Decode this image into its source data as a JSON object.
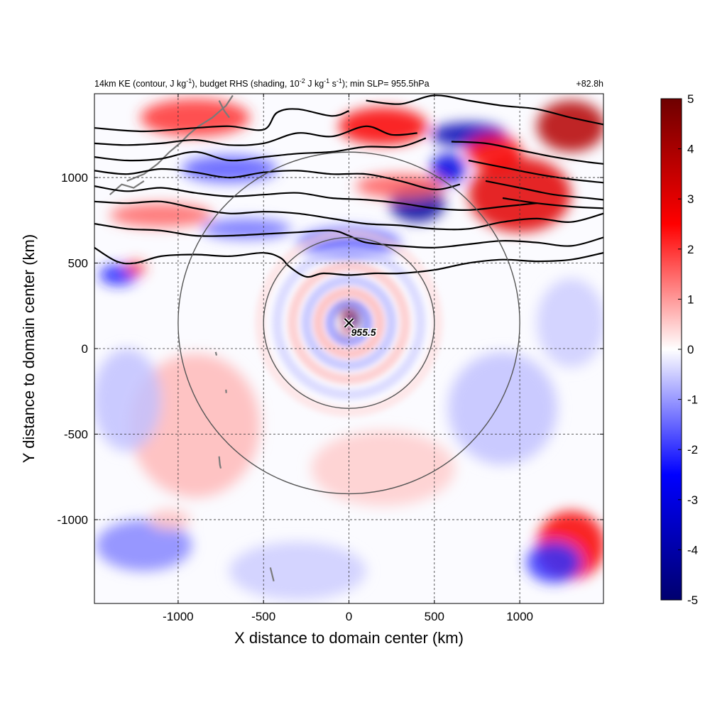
{
  "chart_data": {
    "type": "heatmap",
    "title_parts": {
      "p1": "14km KE (contour, J kg",
      "p1_sup": "-1",
      "p2": "), budget RHS (shading, 10",
      "p2_sup": "-2",
      "p3": " J kg",
      "p3_sup": "-1",
      "p4": " s",
      "p4_sup": "-1",
      "p5": "); min SLP= 955.5hPa"
    },
    "time_label": "+82.8h",
    "xlabel": "X distance to domain center (km)",
    "ylabel": "Y distance to domain center (km)",
    "xlim": [
      -1490,
      1490
    ],
    "ylim": [
      -1490,
      1490
    ],
    "xticks": [
      -1000,
      -500,
      0,
      500,
      1000
    ],
    "yticks": [
      -1000,
      -500,
      0,
      500,
      1000
    ],
    "xtick_labels": [
      "-1000",
      "-500",
      "0",
      "500",
      "1000"
    ],
    "ytick_labels": [
      "-1000",
      "-500",
      "0",
      "500",
      "1000"
    ],
    "grid": true,
    "colorbar": {
      "min": -5,
      "max": 5,
      "ticks": [
        5,
        4,
        3,
        2,
        1,
        0,
        -1,
        -2,
        -3,
        -4,
        -5
      ],
      "tick_labels": [
        "5",
        "4",
        "3",
        "2",
        "1",
        "0",
        "-1",
        "-2",
        "-3",
        "-4",
        "-5"
      ],
      "colors": [
        "#00006e",
        "#0000ff",
        "#ffffff",
        "#ff0000",
        "#6e0000"
      ],
      "placement": "right"
    },
    "storm_center": {
      "x": 0,
      "y": 150,
      "label": "955.5",
      "min_slp_hPa": 955.5
    },
    "range_circles_km": [
      500,
      1000
    ],
    "ke_contours": [
      {
        "points": [
          [
            -1490,
            1290
          ],
          [
            -1200,
            1270
          ],
          [
            -900,
            1290
          ],
          [
            -700,
            1300
          ],
          [
            -500,
            1280
          ],
          [
            -420,
            1380
          ],
          [
            -300,
            1400
          ],
          [
            -100,
            1360
          ],
          [
            0,
            1390
          ]
        ]
      },
      {
        "points": [
          [
            -1490,
            1200
          ],
          [
            -1300,
            1190
          ],
          [
            -1100,
            1200
          ],
          [
            -900,
            1220
          ],
          [
            -700,
            1190
          ],
          [
            -500,
            1200
          ],
          [
            -300,
            1260
          ],
          [
            -100,
            1240
          ],
          [
            100,
            1300
          ],
          [
            250,
            1250
          ],
          [
            400,
            1260
          ]
        ]
      },
      {
        "points": [
          [
            -1490,
            1120
          ],
          [
            -1300,
            1100
          ],
          [
            -1100,
            1110
          ],
          [
            -900,
            1150
          ],
          [
            -700,
            1100
          ],
          [
            -500,
            1120
          ],
          [
            -300,
            1140
          ],
          [
            -100,
            1150
          ],
          [
            100,
            1180
          ],
          [
            300,
            1180
          ],
          [
            450,
            1230
          ]
        ]
      },
      {
        "points": [
          [
            -1490,
            1040
          ],
          [
            -1300,
            1020
          ],
          [
            -1100,
            1050
          ],
          [
            -900,
            1030
          ],
          [
            -700,
            1000
          ],
          [
            -500,
            1030
          ],
          [
            -300,
            1040
          ],
          [
            -100,
            1020
          ],
          [
            100,
            1020
          ],
          [
            300,
            980
          ],
          [
            500,
            930
          ],
          [
            650,
            960
          ]
        ]
      },
      {
        "points": [
          [
            -1490,
            950
          ],
          [
            -1300,
            920
          ],
          [
            -1100,
            940
          ],
          [
            -900,
            910
          ],
          [
            -700,
            890
          ],
          [
            -500,
            900
          ],
          [
            -300,
            910
          ],
          [
            -100,
            880
          ],
          [
            100,
            870
          ],
          [
            300,
            850
          ],
          [
            500,
            820
          ],
          [
            700,
            810
          ],
          [
            900,
            830
          ],
          [
            1100,
            850
          ]
        ]
      },
      {
        "points": [
          [
            -1490,
            860
          ],
          [
            -1300,
            850
          ],
          [
            -1100,
            860
          ],
          [
            -900,
            820
          ],
          [
            -700,
            790
          ],
          [
            -500,
            800
          ],
          [
            -300,
            790
          ],
          [
            -100,
            760
          ],
          [
            100,
            730
          ],
          [
            300,
            720
          ],
          [
            500,
            700
          ],
          [
            700,
            700
          ],
          [
            900,
            740
          ],
          [
            1100,
            760
          ],
          [
            1300,
            740
          ],
          [
            1490,
            790
          ]
        ]
      },
      {
        "points": [
          [
            -1490,
            730
          ],
          [
            -1300,
            700
          ],
          [
            -1100,
            690
          ],
          [
            -900,
            660
          ],
          [
            -700,
            660
          ],
          [
            -500,
            670
          ],
          [
            -300,
            680
          ],
          [
            -100,
            690
          ],
          [
            0,
            660
          ],
          [
            100,
            620
          ],
          [
            300,
            600
          ],
          [
            500,
            590
          ],
          [
            700,
            610
          ],
          [
            900,
            630
          ],
          [
            1100,
            620
          ],
          [
            1300,
            600
          ],
          [
            1490,
            650
          ]
        ]
      },
      {
        "points": [
          [
            -1490,
            590
          ],
          [
            -1360,
            510
          ],
          [
            -1250,
            500
          ],
          [
            -1100,
            540
          ],
          [
            -900,
            550
          ],
          [
            -700,
            540
          ],
          [
            -500,
            560
          ],
          [
            -400,
            530
          ],
          [
            -350,
            480
          ],
          [
            -250,
            420
          ],
          [
            -150,
            440
          ],
          [
            0,
            430
          ],
          [
            150,
            440
          ],
          [
            300,
            440
          ],
          [
            500,
            460
          ],
          [
            700,
            500
          ],
          [
            900,
            520
          ],
          [
            1100,
            510
          ],
          [
            1300,
            520
          ],
          [
            1490,
            560
          ]
        ]
      },
      {
        "points": [
          [
            100,
            1450
          ],
          [
            300,
            1430
          ],
          [
            500,
            1480
          ],
          [
            700,
            1450
          ],
          [
            900,
            1420
          ],
          [
            1100,
            1400
          ],
          [
            1300,
            1350
          ],
          [
            1490,
            1310
          ]
        ]
      },
      {
        "points": [
          [
            600,
            1210
          ],
          [
            800,
            1200
          ],
          [
            1000,
            1160
          ],
          [
            1200,
            1120
          ],
          [
            1400,
            1090
          ],
          [
            1490,
            1080
          ]
        ]
      },
      {
        "points": [
          [
            700,
            1100
          ],
          [
            900,
            1060
          ],
          [
            1100,
            1020
          ],
          [
            1300,
            990
          ],
          [
            1490,
            970
          ]
        ]
      },
      {
        "points": [
          [
            800,
            980
          ],
          [
            1000,
            940
          ],
          [
            1200,
            900
          ],
          [
            1400,
            880
          ],
          [
            1490,
            870
          ]
        ]
      },
      {
        "points": [
          [
            900,
            880
          ],
          [
            1100,
            850
          ],
          [
            1300,
            830
          ],
          [
            1490,
            820
          ]
        ]
      }
    ],
    "coastline_segments": [
      {
        "points": [
          [
            -1300,
            980
          ],
          [
            -1200,
            1020
          ],
          [
            -1120,
            1080
          ],
          [
            -1050,
            1150
          ],
          [
            -990,
            1200
          ],
          [
            -940,
            1250
          ],
          [
            -880,
            1300
          ],
          [
            -800,
            1350
          ],
          [
            -720,
            1420
          ],
          [
            -680,
            1480
          ]
        ]
      },
      {
        "points": [
          [
            -1400,
            900
          ],
          [
            -1330,
            960
          ],
          [
            -1260,
            940
          ],
          [
            -1200,
            980
          ]
        ]
      },
      {
        "points": [
          [
            -760,
            1450
          ],
          [
            -730,
            1390
          ],
          [
            -700,
            1350
          ]
        ]
      },
      {
        "points": [
          [
            -760,
            -630
          ],
          [
            -755,
            -680
          ],
          [
            -750,
            -700
          ]
        ]
      },
      {
        "points": [
          [
            -460,
            -1280
          ],
          [
            -450,
            -1320
          ],
          [
            -440,
            -1360
          ]
        ]
      },
      {
        "points": [
          [
            -780,
            -20
          ],
          [
            -775,
            -40
          ]
        ]
      },
      {
        "points": [
          [
            -720,
            -240
          ],
          [
            -718,
            -260
          ]
        ]
      }
    ],
    "shading_blobs": [
      {
        "x": 0,
        "y": 210,
        "rx": 55,
        "ry": 40,
        "v": 4.5
      },
      {
        "x": 30,
        "y": 165,
        "rx": 40,
        "ry": 45,
        "v": -4.8
      },
      {
        "x": -15,
        "y": 100,
        "rx": 25,
        "ry": 35,
        "v": 3.8
      },
      {
        "x": 400,
        "y": 850,
        "rx": 160,
        "ry": 110,
        "v": -4.2
      },
      {
        "x": 700,
        "y": 1250,
        "rx": 220,
        "ry": 70,
        "v": -3.8
      },
      {
        "x": 580,
        "y": 1050,
        "rx": 100,
        "ry": 90,
        "v": -3.0
      },
      {
        "x": 1000,
        "y": 900,
        "rx": 300,
        "ry": 220,
        "v": 3.0
      },
      {
        "x": 1300,
        "y": 1300,
        "rx": 200,
        "ry": 150,
        "v": 3.8
      },
      {
        "x": 850,
        "y": 1150,
        "rx": 160,
        "ry": 100,
        "v": 2.6
      },
      {
        "x": 200,
        "y": 1300,
        "rx": 260,
        "ry": 110,
        "v": 2.6
      },
      {
        "x": -900,
        "y": 1350,
        "rx": 320,
        "ry": 110,
        "v": 2.0
      },
      {
        "x": -700,
        "y": 1050,
        "rx": 280,
        "ry": 80,
        "v": -1.6
      },
      {
        "x": -1100,
        "y": 780,
        "rx": 300,
        "ry": 70,
        "v": 1.5
      },
      {
        "x": -600,
        "y": 700,
        "rx": 260,
        "ry": 60,
        "v": -1.4
      },
      {
        "x": -1350,
        "y": 430,
        "rx": 110,
        "ry": 60,
        "v": -2.2
      },
      {
        "x": -1250,
        "y": 470,
        "rx": 60,
        "ry": 40,
        "v": 2.0
      },
      {
        "x": 0,
        "y": 620,
        "rx": 300,
        "ry": 90,
        "v": -1.5
      },
      {
        "x": 300,
        "y": 950,
        "rx": 260,
        "ry": 70,
        "v": 1.6
      },
      {
        "x": 1300,
        "y": -1150,
        "rx": 200,
        "ry": 200,
        "v": 2.6
      },
      {
        "x": 1200,
        "y": -1250,
        "rx": 160,
        "ry": 120,
        "v": -2.0
      },
      {
        "x": -1200,
        "y": -1150,
        "rx": 280,
        "ry": 150,
        "v": -1.2
      },
      {
        "x": -900,
        "y": -450,
        "rx": 380,
        "ry": 420,
        "v": 0.7
      },
      {
        "x": 900,
        "y": -350,
        "rx": 320,
        "ry": 330,
        "v": -0.6
      },
      {
        "x": 200,
        "y": -700,
        "rx": 420,
        "ry": 220,
        "v": 0.5
      },
      {
        "x": -1300,
        "y": -300,
        "rx": 200,
        "ry": 300,
        "v": -0.6
      },
      {
        "x": 1300,
        "y": 150,
        "rx": 200,
        "ry": 260,
        "v": -0.5
      },
      {
        "x": -300,
        "y": -1300,
        "rx": 400,
        "ry": 170,
        "v": -0.5
      },
      {
        "x": -1050,
        "y": -1000,
        "rx": 120,
        "ry": 60,
        "v": 0.6
      }
    ],
    "spiral_rings": [
      {
        "r": 110,
        "v": -1.4
      },
      {
        "r": 180,
        "v": 1.0
      },
      {
        "r": 250,
        "v": -0.9
      },
      {
        "r": 330,
        "v": 0.8
      },
      {
        "r": 420,
        "v": -0.6
      },
      {
        "r": 520,
        "v": 0.4
      }
    ]
  }
}
